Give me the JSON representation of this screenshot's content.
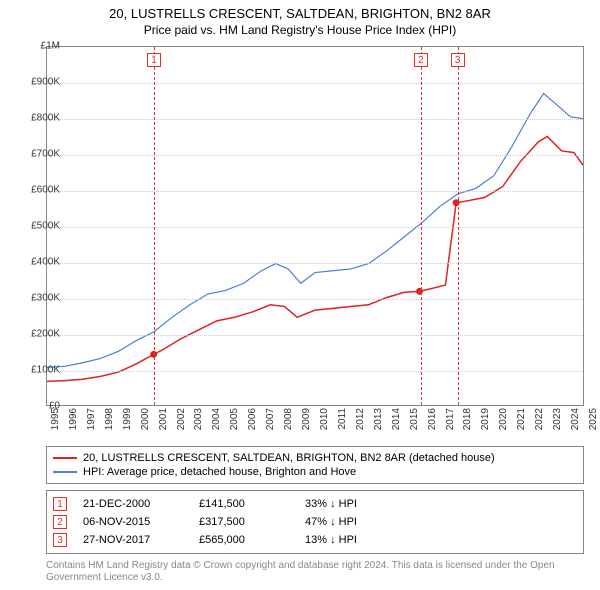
{
  "title": "20, LUSTRELLS CRESCENT, SALTDEAN, BRIGHTON, BN2 8AR",
  "subtitle": "Price paid vs. HM Land Registry's House Price Index (HPI)",
  "chart": {
    "type": "line",
    "background_color": "#ffffff",
    "grid_color": "#cccccc",
    "border_color": "#888888",
    "x_axis": {
      "min_year": 1995,
      "max_year": 2025,
      "ticks": [
        1995,
        1996,
        1997,
        1998,
        1999,
        2000,
        2001,
        2002,
        2003,
        2004,
        2005,
        2006,
        2007,
        2008,
        2009,
        2010,
        2011,
        2012,
        2013,
        2014,
        2015,
        2016,
        2017,
        2018,
        2019,
        2020,
        2021,
        2022,
        2023,
        2024,
        2025
      ],
      "label_fontsize": 10,
      "label_rotation": -90
    },
    "y_axis": {
      "min": 0,
      "max": 1000000,
      "ticks": [
        {
          "v": 0,
          "label": "£0"
        },
        {
          "v": 100000,
          "label": "£100K"
        },
        {
          "v": 200000,
          "label": "£200K"
        },
        {
          "v": 300000,
          "label": "£300K"
        },
        {
          "v": 400000,
          "label": "£400K"
        },
        {
          "v": 500000,
          "label": "£500K"
        },
        {
          "v": 600000,
          "label": "£600K"
        },
        {
          "v": 700000,
          "label": "£700K"
        },
        {
          "v": 800000,
          "label": "£800K"
        },
        {
          "v": 900000,
          "label": "£900K"
        },
        {
          "v": 1000000,
          "label": "£1M"
        }
      ],
      "label_fontsize": 10
    },
    "series": [
      {
        "name": "price_paid",
        "label": "20, LUSTRELLS CRESCENT, SALTDEAN, BRIGHTON, BN2 8AR (detached house)",
        "color": "#dd2222",
        "line_width": 1.5,
        "points_year_value": [
          [
            1995.0,
            66000
          ],
          [
            1996.0,
            68000
          ],
          [
            1997.0,
            72000
          ],
          [
            1998.0,
            80000
          ],
          [
            1999.0,
            92000
          ],
          [
            2000.0,
            115000
          ],
          [
            2000.97,
            141500
          ],
          [
            2001.5,
            155000
          ],
          [
            2002.5,
            185000
          ],
          [
            2003.5,
            210000
          ],
          [
            2004.5,
            235000
          ],
          [
            2005.5,
            245000
          ],
          [
            2006.5,
            260000
          ],
          [
            2007.5,
            280000
          ],
          [
            2008.3,
            275000
          ],
          [
            2009.0,
            245000
          ],
          [
            2010.0,
            265000
          ],
          [
            2011.0,
            270000
          ],
          [
            2012.0,
            275000
          ],
          [
            2013.0,
            280000
          ],
          [
            2014.0,
            300000
          ],
          [
            2015.0,
            315000
          ],
          [
            2015.85,
            317500
          ],
          [
            2016.5,
            325000
          ],
          [
            2017.3,
            335000
          ],
          [
            2017.9,
            565000
          ],
          [
            2018.5,
            570000
          ],
          [
            2019.5,
            580000
          ],
          [
            2020.5,
            610000
          ],
          [
            2021.5,
            680000
          ],
          [
            2022.5,
            735000
          ],
          [
            2023.0,
            750000
          ],
          [
            2023.8,
            710000
          ],
          [
            2024.5,
            705000
          ],
          [
            2025.0,
            670000
          ]
        ],
        "markers": [
          {
            "year": 2000.97,
            "value": 141500
          },
          {
            "year": 2015.85,
            "value": 317500
          },
          {
            "year": 2017.9,
            "value": 565000
          }
        ],
        "marker_color": "#dd2222",
        "marker_radius": 3.5
      },
      {
        "name": "hpi",
        "label": "HPI: Average price, detached house, Brighton and Hove",
        "color": "#4a7fd6",
        "line_width": 1.2,
        "points_year_value": [
          [
            1995.0,
            105000
          ],
          [
            1996.0,
            108000
          ],
          [
            1997.0,
            118000
          ],
          [
            1998.0,
            130000
          ],
          [
            1999.0,
            150000
          ],
          [
            2000.0,
            180000
          ],
          [
            2001.0,
            205000
          ],
          [
            2002.0,
            245000
          ],
          [
            2003.0,
            280000
          ],
          [
            2004.0,
            310000
          ],
          [
            2005.0,
            320000
          ],
          [
            2006.0,
            340000
          ],
          [
            2007.0,
            375000
          ],
          [
            2007.8,
            395000
          ],
          [
            2008.5,
            380000
          ],
          [
            2009.2,
            340000
          ],
          [
            2010.0,
            370000
          ],
          [
            2011.0,
            375000
          ],
          [
            2012.0,
            380000
          ],
          [
            2013.0,
            395000
          ],
          [
            2014.0,
            430000
          ],
          [
            2015.0,
            470000
          ],
          [
            2016.0,
            510000
          ],
          [
            2017.0,
            555000
          ],
          [
            2018.0,
            590000
          ],
          [
            2019.0,
            605000
          ],
          [
            2020.0,
            640000
          ],
          [
            2021.0,
            720000
          ],
          [
            2022.0,
            810000
          ],
          [
            2022.8,
            870000
          ],
          [
            2023.5,
            840000
          ],
          [
            2024.3,
            805000
          ],
          [
            2025.0,
            800000
          ]
        ]
      }
    ],
    "events": [
      {
        "id": "1",
        "year": 2000.97,
        "date": "21-DEC-2000",
        "price": "£141,500",
        "diff": "33% ↓ HPI"
      },
      {
        "id": "2",
        "year": 2015.85,
        "date": "06-NOV-2015",
        "price": "£317,500",
        "diff": "47% ↓ HPI"
      },
      {
        "id": "3",
        "year": 2017.9,
        "date": "27-NOV-2017",
        "price": "£565,000",
        "diff": "13% ↓ HPI"
      }
    ],
    "event_line_color": "#e03030",
    "event_badge_border": "#e03030"
  },
  "legend": {
    "line1": "20, LUSTRELLS CRESCENT, SALTDEAN, BRIGHTON, BN2 8AR (detached house)",
    "line2": "HPI: Average price, detached house, Brighton and Hove"
  },
  "attribution": "Contains HM Land Registry data © Crown copyright and database right 2024. This data is licensed under the Open Government Licence v3.0."
}
